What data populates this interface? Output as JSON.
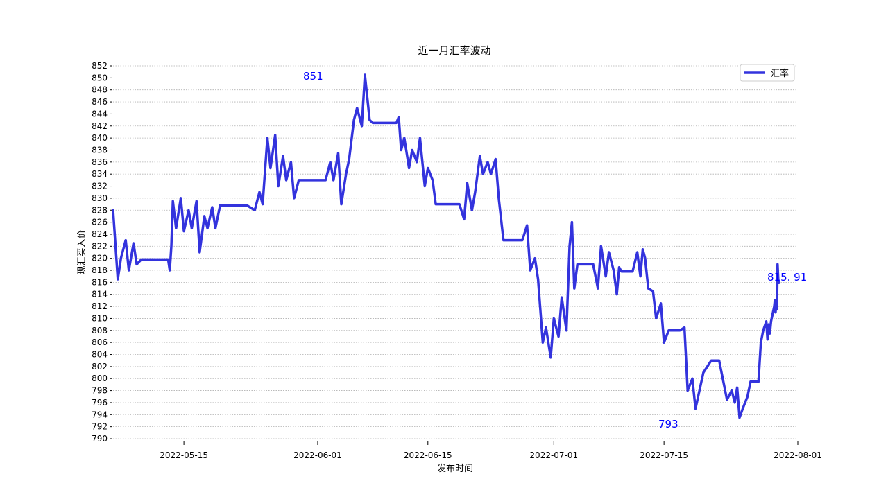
{
  "chart_data": {
    "type": "line",
    "title": "近一月汇率波动",
    "xlabel": "发布时间",
    "ylabel": "现汇买入价",
    "legend": {
      "position": "top-right",
      "entries": [
        "汇率"
      ]
    },
    "grid": {
      "y": true,
      "x": false,
      "style": "dotted"
    },
    "xlim": [
      "2022-05-06",
      "2022-08-01"
    ],
    "ylim": [
      790,
      852
    ],
    "x_ticks": [
      "2022-05-15",
      "2022-06-01",
      "2022-06-15",
      "2022-07-01",
      "2022-07-15",
      "2022-08-01"
    ],
    "y_ticks": [
      790,
      792,
      794,
      796,
      798,
      800,
      802,
      804,
      806,
      808,
      810,
      812,
      814,
      816,
      818,
      820,
      822,
      824,
      826,
      828,
      830,
      832,
      834,
      836,
      838,
      840,
      842,
      844,
      846,
      848,
      850,
      852
    ],
    "annotations": [
      {
        "text": "851",
        "x": "2022-05-27",
        "y": 850.5
      },
      {
        "text": "793",
        "x": "2022-07-14",
        "y": 794
      },
      {
        "text": "815. 91",
        "x": "2022-07-29",
        "y": 815.91
      }
    ],
    "series": [
      {
        "name": "汇率",
        "color": "#3333dd",
        "points": [
          [
            "2022-05-06",
            828
          ],
          [
            "2022-05-06",
            816.5
          ],
          [
            "2022-05-07",
            820
          ],
          [
            "2022-05-07",
            823
          ],
          [
            "2022-05-08",
            818
          ],
          [
            "2022-05-08",
            822.5
          ],
          [
            "2022-05-09",
            819
          ],
          [
            "2022-05-09",
            819.8
          ],
          [
            "2022-05-13",
            819.8
          ],
          [
            "2022-05-13",
            818
          ],
          [
            "2022-05-13",
            822
          ],
          [
            "2022-05-13",
            829.5
          ],
          [
            "2022-05-14",
            825
          ],
          [
            "2022-05-14",
            830
          ],
          [
            "2022-05-15",
            824.5
          ],
          [
            "2022-05-15",
            828
          ],
          [
            "2022-05-16",
            825
          ],
          [
            "2022-05-16",
            829.5
          ],
          [
            "2022-05-17",
            821
          ],
          [
            "2022-05-17",
            827
          ],
          [
            "2022-05-18",
            825
          ],
          [
            "2022-05-18",
            828.5
          ],
          [
            "2022-05-19",
            825
          ],
          [
            "2022-05-19",
            828.8
          ],
          [
            "2022-05-23",
            828.8
          ],
          [
            "2022-05-24",
            828
          ],
          [
            "2022-05-24",
            831
          ],
          [
            "2022-05-25",
            829
          ],
          [
            "2022-05-25",
            840
          ],
          [
            "2022-05-26",
            835
          ],
          [
            "2022-05-26",
            840.5
          ],
          [
            "2022-05-27",
            832
          ],
          [
            "2022-05-27",
            837
          ],
          [
            "2022-05-28",
            833
          ],
          [
            "2022-05-28",
            836
          ],
          [
            "2022-05-29",
            830
          ],
          [
            "2022-05-29",
            833
          ],
          [
            "2022-06-02",
            833
          ],
          [
            "2022-06-02",
            836
          ],
          [
            "2022-06-03",
            833
          ],
          [
            "2022-06-03",
            837.5
          ],
          [
            "2022-06-04",
            829
          ],
          [
            "2022-06-04",
            834
          ],
          [
            "2022-06-05",
            836.5
          ],
          [
            "2022-06-05",
            843
          ],
          [
            "2022-06-06",
            845
          ],
          [
            "2022-06-06",
            842
          ],
          [
            "2022-06-07",
            850.5
          ],
          [
            "2022-06-07",
            843
          ],
          [
            "2022-06-08",
            842.5
          ],
          [
            "2022-06-11",
            842.5
          ],
          [
            "2022-06-11",
            843.5
          ],
          [
            "2022-06-11",
            838
          ],
          [
            "2022-06-12",
            840
          ],
          [
            "2022-06-12",
            835
          ],
          [
            "2022-06-13",
            838
          ],
          [
            "2022-06-13",
            836
          ],
          [
            "2022-06-14",
            840
          ],
          [
            "2022-06-14",
            832
          ],
          [
            "2022-06-15",
            835
          ],
          [
            "2022-06-15",
            833
          ],
          [
            "2022-06-16",
            829
          ],
          [
            "2022-06-19",
            829
          ],
          [
            "2022-06-19",
            826.5
          ],
          [
            "2022-06-20",
            832.5
          ],
          [
            "2022-06-20",
            828
          ],
          [
            "2022-06-21",
            831
          ],
          [
            "2022-06-21",
            837
          ],
          [
            "2022-06-22",
            834
          ],
          [
            "2022-06-22",
            836
          ],
          [
            "2022-06-23",
            834
          ],
          [
            "2022-06-23",
            836.5
          ],
          [
            "2022-06-24",
            830
          ],
          [
            "2022-06-24",
            823
          ],
          [
            "2022-06-27",
            823
          ],
          [
            "2022-06-27",
            825.5
          ],
          [
            "2022-06-28",
            818
          ],
          [
            "2022-06-28",
            820
          ],
          [
            "2022-06-29",
            816.5
          ],
          [
            "2022-06-29",
            806
          ],
          [
            "2022-06-30",
            808.5
          ],
          [
            "2022-06-30",
            803.5
          ],
          [
            "2022-07-01",
            810
          ],
          [
            "2022-07-01",
            807
          ],
          [
            "2022-07-02",
            813.5
          ],
          [
            "2022-07-02",
            808
          ],
          [
            "2022-07-03",
            822
          ],
          [
            "2022-07-03",
            826
          ],
          [
            "2022-07-03",
            815
          ],
          [
            "2022-07-04",
            819
          ],
          [
            "2022-07-06",
            819
          ],
          [
            "2022-07-06",
            815
          ],
          [
            "2022-07-07",
            822
          ],
          [
            "2022-07-07",
            817
          ],
          [
            "2022-07-08",
            821
          ],
          [
            "2022-07-08",
            818
          ],
          [
            "2022-07-09",
            814
          ],
          [
            "2022-07-09",
            818.5
          ],
          [
            "2022-07-09",
            817.8
          ],
          [
            "2022-07-11",
            817.8
          ],
          [
            "2022-07-11",
            821
          ],
          [
            "2022-07-12",
            817
          ],
          [
            "2022-07-12",
            821.5
          ],
          [
            "2022-07-12",
            820
          ],
          [
            "2022-07-13",
            815
          ],
          [
            "2022-07-13",
            814.5
          ],
          [
            "2022-07-14",
            810
          ],
          [
            "2022-07-14",
            812.5
          ],
          [
            "2022-07-15",
            806
          ],
          [
            "2022-07-15",
            808
          ],
          [
            "2022-07-17",
            808
          ],
          [
            "2022-07-17",
            808.5
          ],
          [
            "2022-07-18",
            798
          ],
          [
            "2022-07-18",
            800
          ],
          [
            "2022-07-19",
            795
          ],
          [
            "2022-07-20",
            801
          ],
          [
            "2022-07-21",
            803
          ],
          [
            "2022-07-22",
            803
          ],
          [
            "2022-07-23",
            796.5
          ],
          [
            "2022-07-23",
            798
          ],
          [
            "2022-07-24",
            796
          ],
          [
            "2022-07-24",
            798.5
          ],
          [
            "2022-07-24",
            793.5
          ],
          [
            "2022-07-25",
            795
          ],
          [
            "2022-07-25",
            797
          ],
          [
            "2022-07-26",
            799.5
          ],
          [
            "2022-07-27",
            799.5
          ],
          [
            "2022-07-27",
            806
          ],
          [
            "2022-07-27",
            808
          ],
          [
            "2022-07-28",
            809.5
          ],
          [
            "2022-07-28",
            806.5
          ],
          [
            "2022-07-28",
            809
          ],
          [
            "2022-07-28",
            807.5
          ],
          [
            "2022-07-28",
            809.5
          ],
          [
            "2022-07-29",
            812
          ],
          [
            "2022-07-29",
            813
          ],
          [
            "2022-07-29",
            811
          ],
          [
            "2022-07-29",
            812.5
          ],
          [
            "2022-07-29",
            811.5
          ],
          [
            "2022-07-29",
            819
          ],
          [
            "2022-07-29",
            816.5
          ],
          [
            "2022-07-29",
            815.91
          ]
        ]
      }
    ]
  }
}
